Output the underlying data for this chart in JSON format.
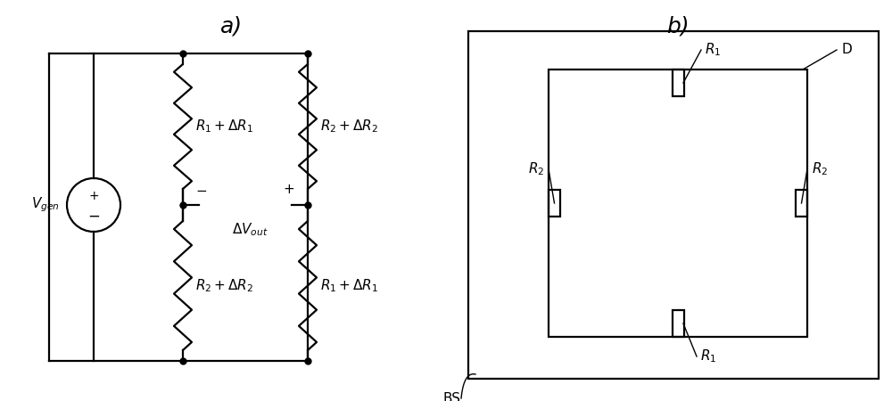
{
  "bg_color": "#ffffff",
  "line_color": "#000000",
  "label_a": "a)",
  "label_b": "b)",
  "font_size_label": 18,
  "font_size_res": 11,
  "font_size_vgen": 11,
  "font_size_vout": 11
}
